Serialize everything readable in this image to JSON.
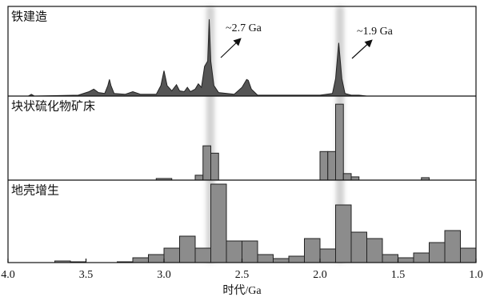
{
  "chart_data": [
    {
      "type": "line",
      "title": "铁建造",
      "x": [
        4.0,
        3.87,
        3.85,
        3.83,
        3.55,
        3.48,
        3.45,
        3.42,
        3.38,
        3.36,
        3.35,
        3.34,
        3.32,
        3.25,
        3.2,
        3.15,
        3.05,
        3.02,
        3.0,
        2.98,
        2.95,
        2.92,
        2.9,
        2.87,
        2.85,
        2.83,
        2.8,
        2.78,
        2.76,
        2.74,
        2.72,
        2.71,
        2.7,
        2.68,
        2.65,
        2.55,
        2.5,
        2.47,
        2.46,
        2.44,
        2.4,
        2.0,
        1.92,
        1.9,
        1.88,
        1.86,
        1.84,
        1.8,
        1.75,
        1.7,
        1.0
      ],
      "values": [
        0,
        0,
        2,
        0,
        1,
        5,
        8,
        4,
        3,
        12,
        19,
        12,
        3,
        2,
        5,
        2,
        2,
        12,
        29,
        12,
        6,
        13,
        6,
        5,
        10,
        5,
        8,
        14,
        10,
        34,
        40,
        88,
        40,
        12,
        4,
        2,
        10,
        19,
        18,
        8,
        1,
        1,
        3,
        20,
        61,
        20,
        3,
        1,
        1,
        0,
        0
      ],
      "color": "#555555",
      "xlim": [
        4.0,
        1.0
      ],
      "ylim": [
        0,
        100
      ],
      "annotations": [
        "~2.7 Ga",
        "~1.9 Ga"
      ]
    },
    {
      "type": "histogram",
      "title": "块状硫化物矿床",
      "bins": [
        3.05,
        2.95,
        2.8,
        2.75,
        2.7,
        2.65,
        2.0,
        1.95,
        1.9,
        1.85,
        1.8,
        1.75,
        1.35,
        1.3
      ],
      "values": [
        2,
        0,
        6,
        42,
        33,
        0,
        35,
        35,
        93,
        8,
        4,
        0,
        3
      ],
      "color": "#8c8c8c",
      "xlim": [
        4.0,
        1.0
      ],
      "ylim": [
        0,
        100
      ]
    },
    {
      "type": "histogram",
      "title": "地壳增生",
      "bins": [
        3.7,
        3.6,
        3.5,
        3.4,
        3.3,
        3.2,
        3.1,
        3.0,
        2.9,
        2.8,
        2.7,
        2.6,
        2.5,
        2.4,
        2.3,
        2.2,
        2.1,
        2.0,
        1.9,
        1.8,
        1.7,
        1.6,
        1.5,
        1.4,
        1.3,
        1.2,
        1.1,
        1.0
      ],
      "values": [
        2,
        1,
        0,
        0,
        1,
        6,
        10,
        18,
        33,
        18,
        98,
        27,
        27,
        10,
        5,
        8,
        30,
        17,
        72,
        38,
        30,
        10,
        6,
        12,
        25,
        40,
        18
      ],
      "color": "#8c8c8c",
      "xlim": [
        4.0,
        1.0
      ],
      "ylim": [
        0,
        100
      ],
      "xticks": [
        {
          "value": 4.0,
          "label": "4.0"
        },
        3.5,
        {
          "value": 3.0,
          "label": "3.0"
        },
        2.5,
        {
          "value": 2.0,
          "label": "2.0"
        },
        1.5,
        {
          "value": 1.0,
          "label": "1.0"
        }
      ],
      "xlabel": "时代/Ga"
    }
  ]
}
